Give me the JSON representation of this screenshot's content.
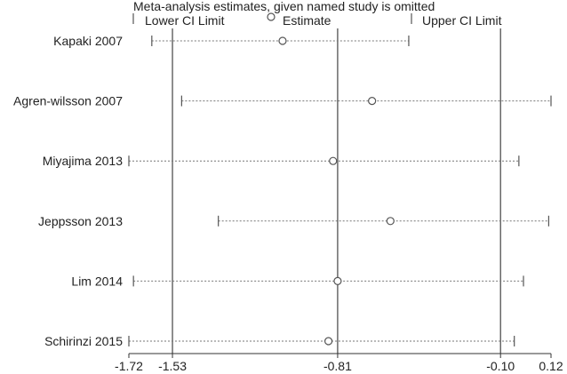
{
  "chart_data": {
    "type": "forest",
    "title": "Meta-analysis estimates, given named study is omitted",
    "legend": {
      "lower": "Lower CI Limit",
      "estimate": "Estimate",
      "upper": "Upper CI Limit"
    },
    "x_ticks": [
      {
        "value": -1.72,
        "label": "-1.72"
      },
      {
        "value": -1.53,
        "label": "-1.53"
      },
      {
        "value": -0.81,
        "label": "-0.81"
      },
      {
        "value": -0.1,
        "label": "-0.10"
      },
      {
        "value": 0.12,
        "label": "0.12"
      }
    ],
    "xlim": [
      -1.72,
      0.12
    ],
    "reference_lines": [
      -1.53,
      -0.81,
      -0.1
    ],
    "studies": [
      {
        "name": "Kapaki 2007",
        "lower": -1.62,
        "estimate": -1.05,
        "upper": -0.5
      },
      {
        "name": "Agren-wilsson 2007",
        "lower": -1.49,
        "estimate": -0.66,
        "upper": 0.12
      },
      {
        "name": "Miyajima 2013",
        "lower": -1.72,
        "estimate": -0.83,
        "upper": -0.02
      },
      {
        "name": "Jeppsson 2013",
        "lower": -1.33,
        "estimate": -0.58,
        "upper": 0.11
      },
      {
        "name": "Lim 2014",
        "lower": -1.7,
        "estimate": -0.81,
        "upper": 0.0
      },
      {
        "name": "Schirinzi 2015",
        "lower": -1.72,
        "estimate": -0.85,
        "upper": -0.04
      }
    ]
  }
}
